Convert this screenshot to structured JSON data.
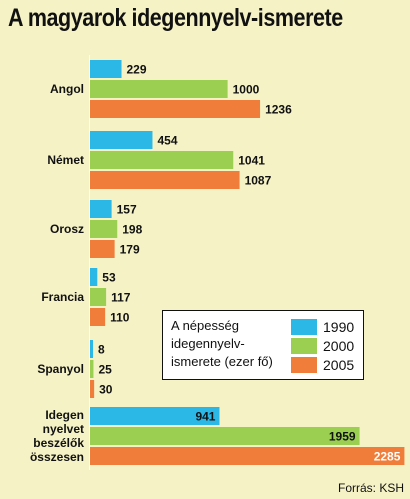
{
  "title": "A magyarok idegennyelv-ismerete",
  "source": "Forrás: KSH",
  "legend": {
    "title": "A népesség idegennyelv-ismerete (ezer fő)"
  },
  "colors": {
    "background": "#f5f2c6",
    "1990": "#2bb8e6",
    "2000": "#9bcf52",
    "2005": "#f07e3a"
  },
  "chart_data": {
    "type": "bar",
    "orientation": "horizontal",
    "title": "A magyarok idegennyelv-ismerete",
    "categories": [
      [
        "Angol"
      ],
      [
        "Német"
      ],
      [
        "Orosz"
      ],
      [
        "Francia"
      ],
      [
        "Spanyol"
      ],
      [
        "Idegen",
        "nyelvet",
        "beszélők",
        "összesen"
      ]
    ],
    "series": [
      {
        "name": "1990",
        "color": "#2bb8e6",
        "values": [
          229,
          454,
          157,
          53,
          8,
          941
        ]
      },
      {
        "name": "2000",
        "color": "#9bcf52",
        "values": [
          1000,
          1041,
          198,
          117,
          25,
          1959
        ]
      },
      {
        "name": "2005",
        "color": "#f07e3a",
        "values": [
          1236,
          1087,
          179,
          110,
          30,
          2285
        ]
      }
    ],
    "legend_position": "bottom-right",
    "grid": false
  }
}
